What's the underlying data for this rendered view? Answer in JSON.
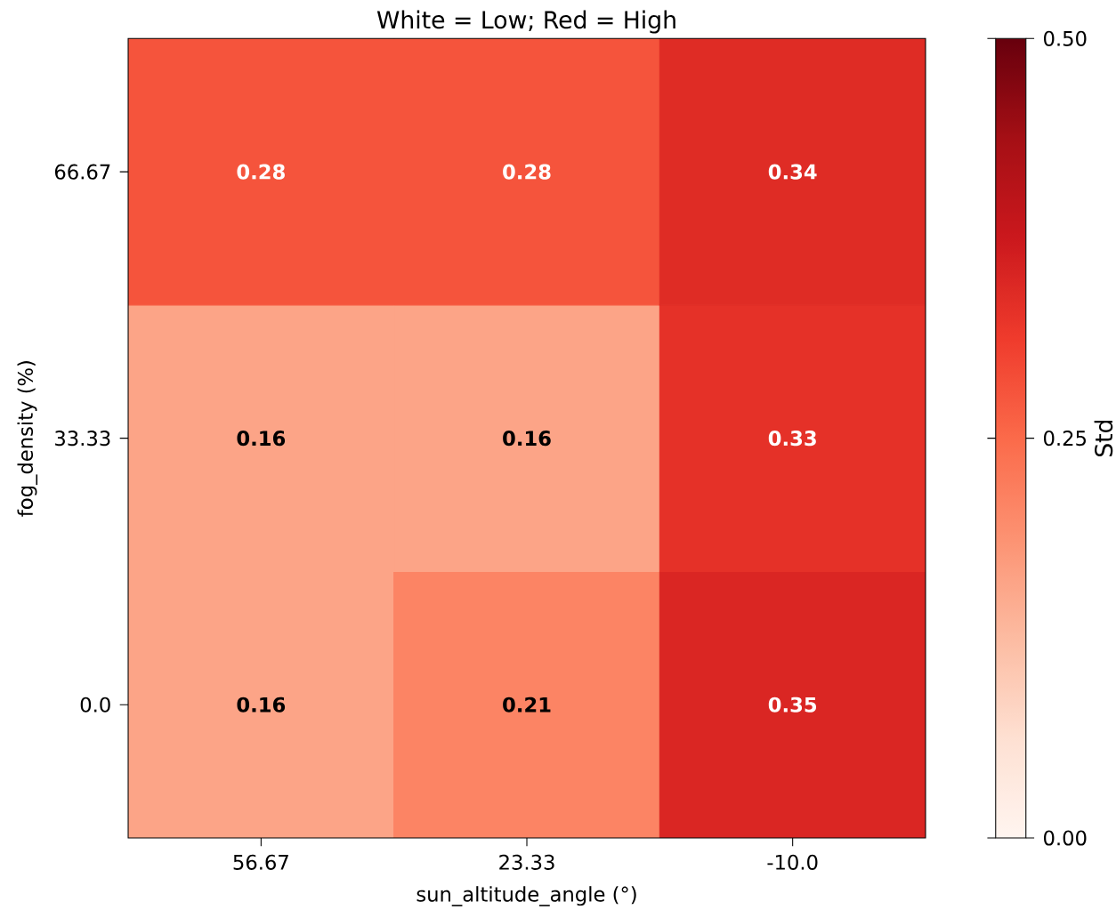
{
  "chart_data": {
    "type": "heatmap",
    "title": "White = Low; Red = High",
    "xlabel": "sun_altitude_angle (°)",
    "ylabel": "fog_density (%)",
    "clabel": "Std",
    "categories": [
      "56.67",
      "23.33",
      "-10.0"
    ],
    "y_categories": [
      "66.67",
      "33.33",
      "0.0"
    ],
    "cells": [
      [
        0.28,
        0.28,
        0.34
      ],
      [
        0.16,
        0.16,
        0.33
      ],
      [
        0.16,
        0.21,
        0.35
      ]
    ],
    "data_labels": true,
    "clim": [
      0,
      0.5
    ],
    "cticks": [
      {
        "value": 0,
        "label": "0.00"
      },
      {
        "value": 0.25,
        "label": "0.25"
      },
      {
        "value": 0.5,
        "label": "0.50"
      }
    ]
  }
}
